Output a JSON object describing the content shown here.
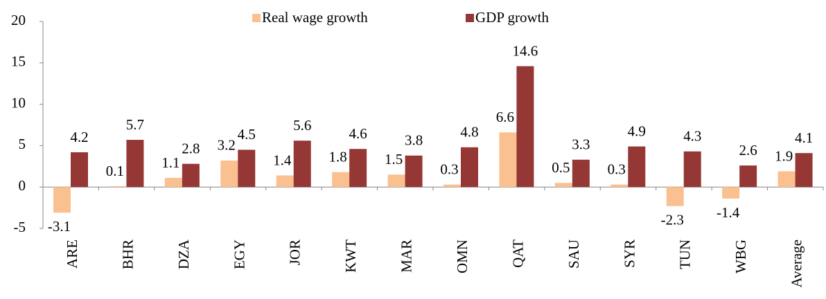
{
  "chart_data": {
    "type": "bar",
    "categories": [
      "ARE",
      "BHR",
      "DZA",
      "EGY",
      "JOR",
      "KWT",
      "MAR",
      "OMN",
      "QAT",
      "SAU",
      "SYR",
      "TUN",
      "WBG",
      "Average"
    ],
    "series": [
      {
        "name": "Real wage growth",
        "color": "#fac090",
        "values": [
          -3.1,
          0.1,
          1.1,
          3.2,
          1.4,
          1.8,
          1.5,
          0.3,
          6.6,
          0.5,
          0.3,
          -2.3,
          -1.4,
          1.9
        ]
      },
      {
        "name": "GDP growth",
        "color": "#953735",
        "values": [
          4.2,
          5.7,
          2.8,
          4.5,
          5.6,
          4.6,
          3.8,
          4.8,
          14.6,
          3.3,
          4.9,
          4.3,
          2.6,
          4.1
        ]
      }
    ],
    "ylim": [
      -5,
      20
    ],
    "yticks": [
      -5,
      0,
      5,
      10,
      15,
      20
    ],
    "legend": "top"
  }
}
